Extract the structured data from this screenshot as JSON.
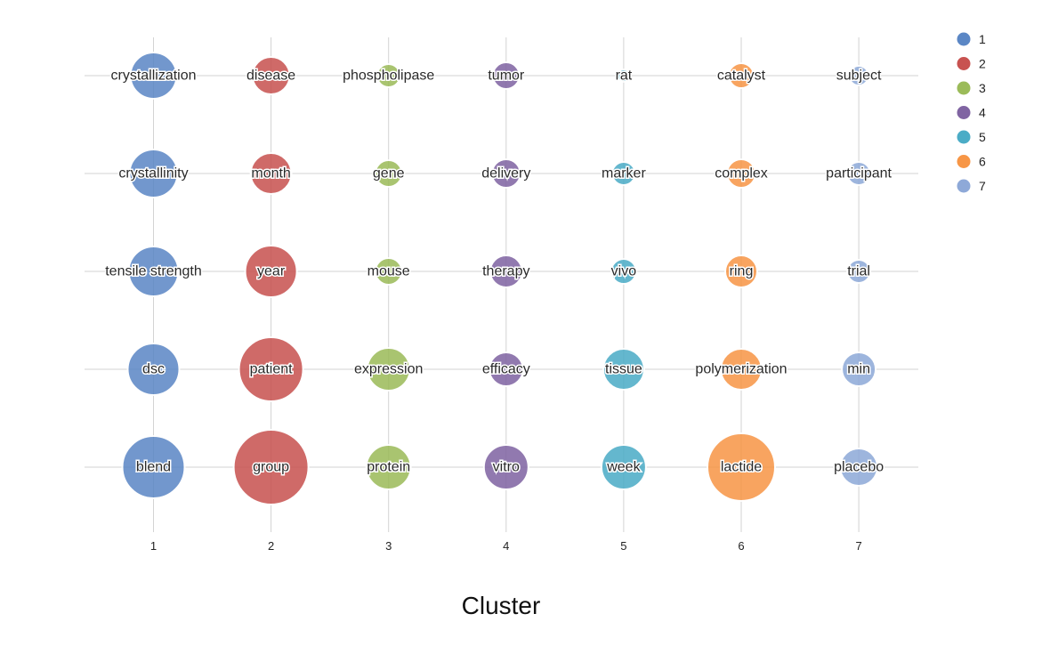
{
  "chart_data": {
    "type": "scatter",
    "subtype": "bubble",
    "title": "",
    "xlabel": "Cluster",
    "ylabel": "",
    "x_ticks": [
      "1",
      "2",
      "3",
      "4",
      "5",
      "6",
      "7"
    ],
    "rank_rows": 5,
    "grid": true,
    "legend_position": "top-right",
    "series": [
      {
        "name": "1",
        "color": "#5B87C5",
        "points": [
          {
            "x": 1,
            "rank": 1,
            "term": "crystallization",
            "size": 26
          },
          {
            "x": 1,
            "rank": 2,
            "term": "crystallinity",
            "size": 27
          },
          {
            "x": 1,
            "rank": 3,
            "term": "tensile strength",
            "size": 28
          },
          {
            "x": 1,
            "rank": 4,
            "term": "dsc",
            "size": 29
          },
          {
            "x": 1,
            "rank": 5,
            "term": "blend",
            "size": 35
          }
        ]
      },
      {
        "name": "2",
        "color": "#C85250",
        "points": [
          {
            "x": 2,
            "rank": 1,
            "term": "disease",
            "size": 21
          },
          {
            "x": 2,
            "rank": 2,
            "term": "month",
            "size": 23
          },
          {
            "x": 2,
            "rank": 3,
            "term": "year",
            "size": 29
          },
          {
            "x": 2,
            "rank": 4,
            "term": "patient",
            "size": 36
          },
          {
            "x": 2,
            "rank": 5,
            "term": "group",
            "size": 42
          }
        ]
      },
      {
        "name": "3",
        "color": "#9BBB59",
        "points": [
          {
            "x": 3,
            "rank": 1,
            "term": "phospholipase",
            "size": 13
          },
          {
            "x": 3,
            "rank": 2,
            "term": "gene",
            "size": 15
          },
          {
            "x": 3,
            "rank": 3,
            "term": "mouse",
            "size": 15
          },
          {
            "x": 3,
            "rank": 4,
            "term": "expression",
            "size": 24
          },
          {
            "x": 3,
            "rank": 5,
            "term": "protein",
            "size": 25
          }
        ]
      },
      {
        "name": "4",
        "color": "#8064A2",
        "points": [
          {
            "x": 4,
            "rank": 1,
            "term": "tumor",
            "size": 15
          },
          {
            "x": 4,
            "rank": 2,
            "term": "delivery",
            "size": 16
          },
          {
            "x": 4,
            "rank": 3,
            "term": "therapy",
            "size": 18
          },
          {
            "x": 4,
            "rank": 4,
            "term": "efficacy",
            "size": 19
          },
          {
            "x": 4,
            "rank": 5,
            "term": "vitro",
            "size": 25
          }
        ]
      },
      {
        "name": "5",
        "color": "#4BACC6",
        "points": [
          {
            "x": 5,
            "rank": 1,
            "term": "rat",
            "size": 7
          },
          {
            "x": 5,
            "rank": 2,
            "term": "marker",
            "size": 13
          },
          {
            "x": 5,
            "rank": 3,
            "term": "vivo",
            "size": 14
          },
          {
            "x": 5,
            "rank": 4,
            "term": "tissue",
            "size": 23
          },
          {
            "x": 5,
            "rank": 5,
            "term": "week",
            "size": 25
          }
        ]
      },
      {
        "name": "6",
        "color": "#F79646",
        "points": [
          {
            "x": 6,
            "rank": 1,
            "term": "catalyst",
            "size": 14
          },
          {
            "x": 6,
            "rank": 2,
            "term": "complex",
            "size": 16
          },
          {
            "x": 6,
            "rank": 3,
            "term": "ring",
            "size": 18
          },
          {
            "x": 6,
            "rank": 4,
            "term": "polymerization",
            "size": 23
          },
          {
            "x": 6,
            "rank": 5,
            "term": "lactide",
            "size": 38
          }
        ]
      },
      {
        "name": "7",
        "color": "#8EA9D8",
        "points": [
          {
            "x": 7,
            "rank": 1,
            "term": "subject",
            "size": 11
          },
          {
            "x": 7,
            "rank": 2,
            "term": "participant",
            "size": 13
          },
          {
            "x": 7,
            "rank": 3,
            "term": "trial",
            "size": 13
          },
          {
            "x": 7,
            "rank": 4,
            "term": "min",
            "size": 19
          },
          {
            "x": 7,
            "rank": 5,
            "term": "placebo",
            "size": 21
          }
        ]
      }
    ]
  }
}
